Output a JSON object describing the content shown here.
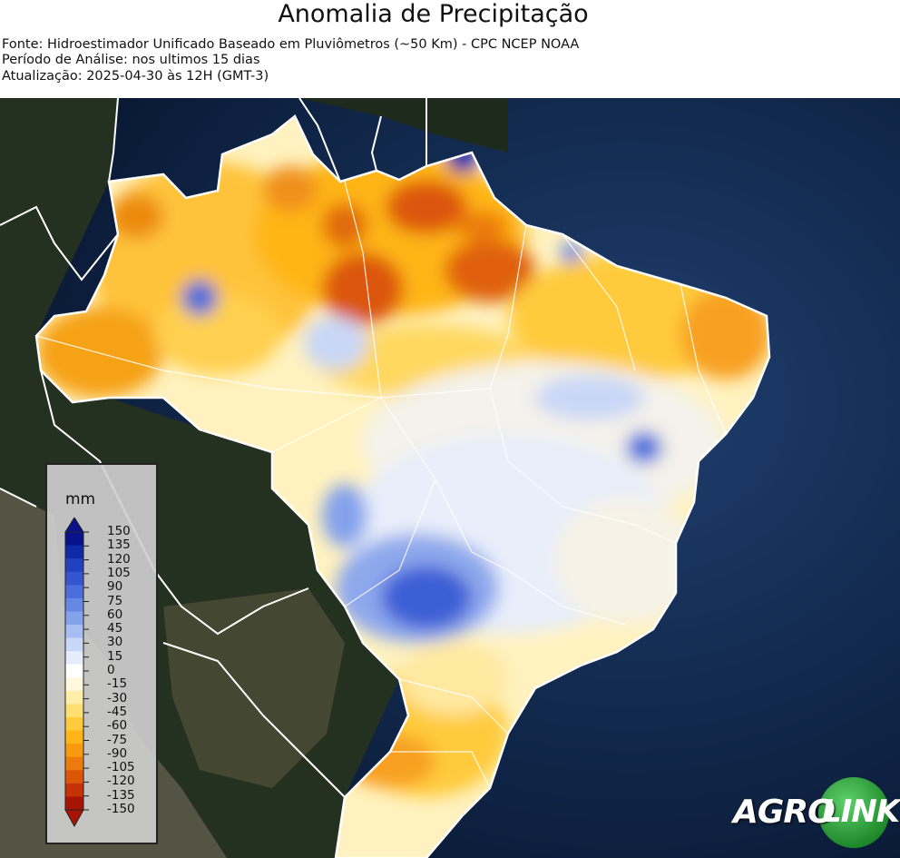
{
  "header": {
    "title": "Anomalia de Precipitação",
    "source": "Fonte: Hidroestimador Unificado Baseado em Pluviômetros (~50 Km) - CPC NCEP NOAA",
    "period": "Período de Análise: nos ultimos 15 dias",
    "updated": "Atualização: 2025-04-30 às 12H (GMT-3)"
  },
  "legend": {
    "unit": "mm",
    "ticks": [
      "150",
      "135",
      "120",
      "105",
      "90",
      "75",
      "60",
      "45",
      "30",
      "15",
      "0",
      "-15",
      "-30",
      "-45",
      "-60",
      "-75",
      "-90",
      "-105",
      "-120",
      "-135",
      "-150"
    ],
    "colors": [
      "#08128a",
      "#0e2aa8",
      "#2041c0",
      "#3356d0",
      "#4a6fdc",
      "#6588e4",
      "#84a2ec",
      "#a7bef2",
      "#c9d7f6",
      "#e6edfa",
      "#ffffff",
      "#fff8dc",
      "#ffedaa",
      "#ffde72",
      "#ffcb3c",
      "#ffb515",
      "#f89a10",
      "#ec7a0c",
      "#dc5608",
      "#c53206",
      "#a81404"
    ]
  },
  "logo": {
    "part1": "AGRO",
    "part2": "LINK"
  }
}
